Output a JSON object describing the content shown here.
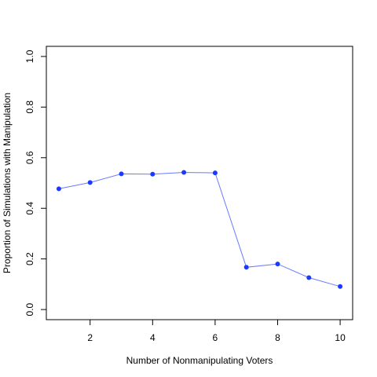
{
  "chart_data": {
    "type": "line",
    "xlabel": "Number of Nonmanipulating Voters",
    "ylabel": "Proportion of Simulations with Manipulation",
    "xlim": [
      0.6,
      10.4
    ],
    "ylim": [
      -0.04,
      1.04
    ],
    "xticks": [
      "2",
      "4",
      "6",
      "8",
      "10"
    ],
    "xtick_values": [
      2,
      4,
      6,
      8,
      10
    ],
    "yticks": [
      "0.0",
      "0.2",
      "0.4",
      "0.6",
      "0.8",
      "1.0"
    ],
    "ytick_values": [
      0,
      0.2,
      0.4,
      0.6,
      0.8,
      1.0
    ],
    "grid": false,
    "x": [
      1,
      2,
      3,
      4,
      5,
      6,
      7,
      8,
      9,
      10
    ],
    "y": [
      0.477,
      0.502,
      0.536,
      0.535,
      0.542,
      0.54,
      0.167,
      0.18,
      0.126,
      0.091
    ],
    "line_color": "#6a7aff",
    "point_color": "#1a3aff"
  }
}
